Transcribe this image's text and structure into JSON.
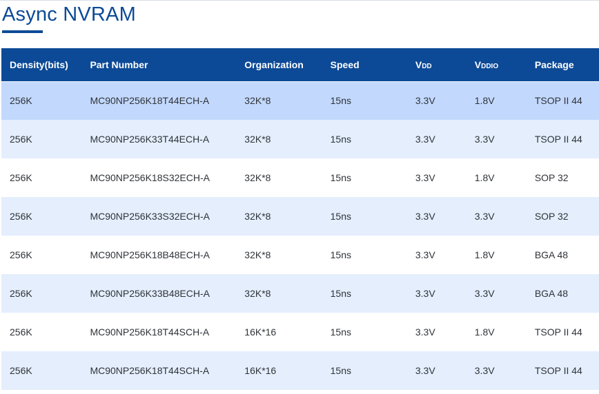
{
  "page": {
    "title": "Async NVRAM"
  },
  "table": {
    "headers": {
      "density": "Density(bits)",
      "part_number": "Part Number",
      "organization": "Organization",
      "speed": "Speed",
      "vdd_main": "V",
      "vdd_sub": "DD",
      "vddio_main": "V",
      "vddio_sub": "DDIO",
      "package": "Package"
    },
    "rows": [
      {
        "density": "256K",
        "part_number": "MC90NP256K18T44ECH-A",
        "organization": "32K*8",
        "speed": "15ns",
        "vdd": "3.3V",
        "vddio": "1.8V",
        "package": "TSOP II 44"
      },
      {
        "density": "256K",
        "part_number": "MC90NP256K33T44ECH-A",
        "organization": "32K*8",
        "speed": "15ns",
        "vdd": "3.3V",
        "vddio": "3.3V",
        "package": "TSOP II 44"
      },
      {
        "density": "256K",
        "part_number": "MC90NP256K18S32ECH-A",
        "organization": "32K*8",
        "speed": "15ns",
        "vdd": "3.3V",
        "vddio": "1.8V",
        "package": "SOP 32"
      },
      {
        "density": "256K",
        "part_number": "MC90NP256K33S32ECH-A",
        "organization": "32K*8",
        "speed": "15ns",
        "vdd": "3.3V",
        "vddio": "3.3V",
        "package": "SOP 32"
      },
      {
        "density": "256K",
        "part_number": "MC90NP256K18B48ECH-A",
        "organization": "32K*8",
        "speed": "15ns",
        "vdd": "3.3V",
        "vddio": "1.8V",
        "package": "BGA 48"
      },
      {
        "density": "256K",
        "part_number": "MC90NP256K33B48ECH-A",
        "organization": "32K*8",
        "speed": "15ns",
        "vdd": "3.3V",
        "vddio": "3.3V",
        "package": "BGA 48"
      },
      {
        "density": "256K",
        "part_number": "MC90NP256K18T44SCH-A",
        "organization": "16K*16",
        "speed": "15ns",
        "vdd": "3.3V",
        "vddio": "1.8V",
        "package": "TSOP II 44"
      },
      {
        "density": "256K",
        "part_number": "MC90NP256K18T44SCH-A",
        "organization": "16K*16",
        "speed": "15ns",
        "vdd": "3.3V",
        "vddio": "3.3V",
        "package": "TSOP II 44"
      }
    ]
  },
  "colors": {
    "brand_blue": "#0c4a97",
    "row_highlight": "#c2d8fd",
    "row_alternate": "#e4eefd",
    "text": "#2f3338"
  }
}
